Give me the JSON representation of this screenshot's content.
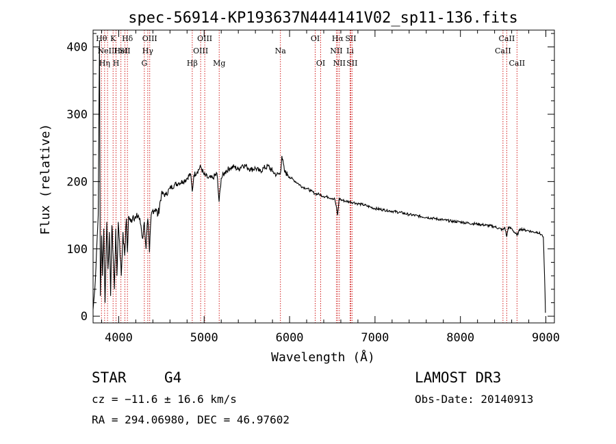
{
  "chart_data": {
    "type": "line",
    "title": "spec-56914-KP193637N444141V02_sp11-136.fits",
    "xlabel": "Wavelength (Å)",
    "ylabel": "Flux (relative)",
    "xlim": [
      3700,
      9100
    ],
    "ylim": [
      -10,
      425
    ],
    "x_ticks": [
      4000,
      5000,
      6000,
      7000,
      8000,
      9000
    ],
    "y_ticks": [
      0,
      100,
      200,
      300,
      400
    ],
    "line_color": "#000000",
    "marker_color": "#cc0000",
    "series": [
      {
        "name": "flux",
        "points": [
          [
            3700,
            10
          ],
          [
            3720,
            40
          ],
          [
            3740,
            95
          ],
          [
            3760,
            150
          ],
          [
            3775,
            410
          ],
          [
            3785,
            30
          ],
          [
            3800,
            120
          ],
          [
            3810,
            60
          ],
          [
            3825,
            130
          ],
          [
            3840,
            20
          ],
          [
            3860,
            140
          ],
          [
            3875,
            70
          ],
          [
            3890,
            125
          ],
          [
            3905,
            30
          ],
          [
            3920,
            135
          ],
          [
            3935,
            90
          ],
          [
            3950,
            40
          ],
          [
            3965,
            130
          ],
          [
            3980,
            60
          ],
          [
            3995,
            140
          ],
          [
            4010,
            110
          ],
          [
            4030,
            60
          ],
          [
            4050,
            125
          ],
          [
            4070,
            90
          ],
          [
            4090,
            145
          ],
          [
            4102,
            95
          ],
          [
            4115,
            148
          ],
          [
            4140,
            140
          ],
          [
            4170,
            150
          ],
          [
            4200,
            145
          ],
          [
            4230,
            150
          ],
          [
            4260,
            135
          ],
          [
            4280,
            115
          ],
          [
            4300,
            140
          ],
          [
            4320,
            100
          ],
          [
            4340,
            145
          ],
          [
            4360,
            95
          ],
          [
            4380,
            150
          ],
          [
            4400,
            158
          ],
          [
            4430,
            160
          ],
          [
            4460,
            150
          ],
          [
            4500,
            182
          ],
          [
            4550,
            180
          ],
          [
            4600,
            190
          ],
          [
            4650,
            195
          ],
          [
            4700,
            198
          ],
          [
            4750,
            200
          ],
          [
            4800,
            205
          ],
          [
            4840,
            212
          ],
          [
            4861,
            185
          ],
          [
            4880,
            210
          ],
          [
            4920,
            215
          ],
          [
            4960,
            222
          ],
          [
            5000,
            210
          ],
          [
            5050,
            205
          ],
          [
            5100,
            205
          ],
          [
            5150,
            212
          ],
          [
            5175,
            170
          ],
          [
            5200,
            205
          ],
          [
            5250,
            215
          ],
          [
            5300,
            220
          ],
          [
            5350,
            222
          ],
          [
            5400,
            218
          ],
          [
            5450,
            225
          ],
          [
            5500,
            222
          ],
          [
            5550,
            218
          ],
          [
            5600,
            220
          ],
          [
            5650,
            215
          ],
          [
            5700,
            220
          ],
          [
            5750,
            223
          ],
          [
            5800,
            215
          ],
          [
            5850,
            210
          ],
          [
            5893,
            212
          ],
          [
            5910,
            238
          ],
          [
            5940,
            215
          ],
          [
            5980,
            210
          ],
          [
            6000,
            207
          ],
          [
            6050,
            202
          ],
          [
            6100,
            197
          ],
          [
            6150,
            192
          ],
          [
            6200,
            190
          ],
          [
            6250,
            186
          ],
          [
            6300,
            182
          ],
          [
            6350,
            181
          ],
          [
            6400,
            178
          ],
          [
            6450,
            177
          ],
          [
            6500,
            175
          ],
          [
            6530,
            174
          ],
          [
            6563,
            150
          ],
          [
            6580,
            175
          ],
          [
            6600,
            173
          ],
          [
            6650,
            171
          ],
          [
            6700,
            170
          ],
          [
            6750,
            169
          ],
          [
            6800,
            167
          ],
          [
            6850,
            166
          ],
          [
            6900,
            164
          ],
          [
            6950,
            162
          ],
          [
            7000,
            160
          ],
          [
            7100,
            158
          ],
          [
            7200,
            156
          ],
          [
            7300,
            154
          ],
          [
            7400,
            151
          ],
          [
            7500,
            149
          ],
          [
            7600,
            147
          ],
          [
            7700,
            145
          ],
          [
            7800,
            143
          ],
          [
            7900,
            141
          ],
          [
            8000,
            140
          ],
          [
            8100,
            138
          ],
          [
            8200,
            137
          ],
          [
            8300,
            135
          ],
          [
            8400,
            133
          ],
          [
            8498,
            128
          ],
          [
            8520,
            132
          ],
          [
            8542,
            118
          ],
          [
            8560,
            132
          ],
          [
            8600,
            130
          ],
          [
            8662,
            120
          ],
          [
            8700,
            130
          ],
          [
            8750,
            128
          ],
          [
            8800,
            127
          ],
          [
            8850,
            125
          ],
          [
            8900,
            125
          ],
          [
            8950,
            121
          ],
          [
            8970,
            118
          ],
          [
            8985,
            60
          ],
          [
            8995,
            5
          ]
        ]
      }
    ],
    "line_markers": [
      {
        "wl": 3798,
        "label": "Hθ",
        "row": 0
      },
      {
        "wl": 3835,
        "label": "Hη",
        "row": 2
      },
      {
        "wl": 3869,
        "label": "NeIII",
        "row": 1
      },
      {
        "wl": 3934,
        "label": "K",
        "row": 0
      },
      {
        "wl": 3969,
        "label": "H",
        "row": 2
      },
      {
        "wl": 4026,
        "label": "HeI",
        "row": 1
      },
      {
        "wl": 4072,
        "label": "SII",
        "row": 1
      },
      {
        "wl": 4102,
        "label": "Hδ",
        "row": 0
      },
      {
        "wl": 4300,
        "label": "G",
        "row": 2
      },
      {
        "wl": 4340,
        "label": "Hγ",
        "row": 1
      },
      {
        "wl": 4363,
        "label": "OIII",
        "row": 0
      },
      {
        "wl": 4861,
        "label": "Hβ",
        "row": 2
      },
      {
        "wl": 4959,
        "label": "OIII",
        "row": 1
      },
      {
        "wl": 5007,
        "label": "OIII",
        "row": 0
      },
      {
        "wl": 5176,
        "label": "Mg",
        "row": 2
      },
      {
        "wl": 5893,
        "label": "Na",
        "row": 1
      },
      {
        "wl": 6300,
        "label": "OI",
        "row": 0
      },
      {
        "wl": 6364,
        "label": "OI",
        "row": 2
      },
      {
        "wl": 6548,
        "label": "NII",
        "row": 1
      },
      {
        "wl": 6563,
        "label": "Hα",
        "row": 0
      },
      {
        "wl": 6583,
        "label": "NII",
        "row": 2
      },
      {
        "wl": 6708,
        "label": "Li",
        "row": 1
      },
      {
        "wl": 6716,
        "label": "SII",
        "row": 0
      },
      {
        "wl": 6731,
        "label": "SII",
        "row": 2
      },
      {
        "wl": 8498,
        "label": "CaII",
        "row": 1
      },
      {
        "wl": 8542,
        "label": "CaII",
        "row": 0
      },
      {
        "wl": 8662,
        "label": "CaII",
        "row": 2
      }
    ]
  },
  "info": {
    "class_label": "STAR",
    "subclass_label": "G4",
    "survey": "LAMOST DR3",
    "cz": "cz = −11.6 ± 16.6 km/s",
    "obs_date": "Obs-Date: 20140913",
    "coords": "RA = 294.06980, DEC =  46.97602"
  }
}
